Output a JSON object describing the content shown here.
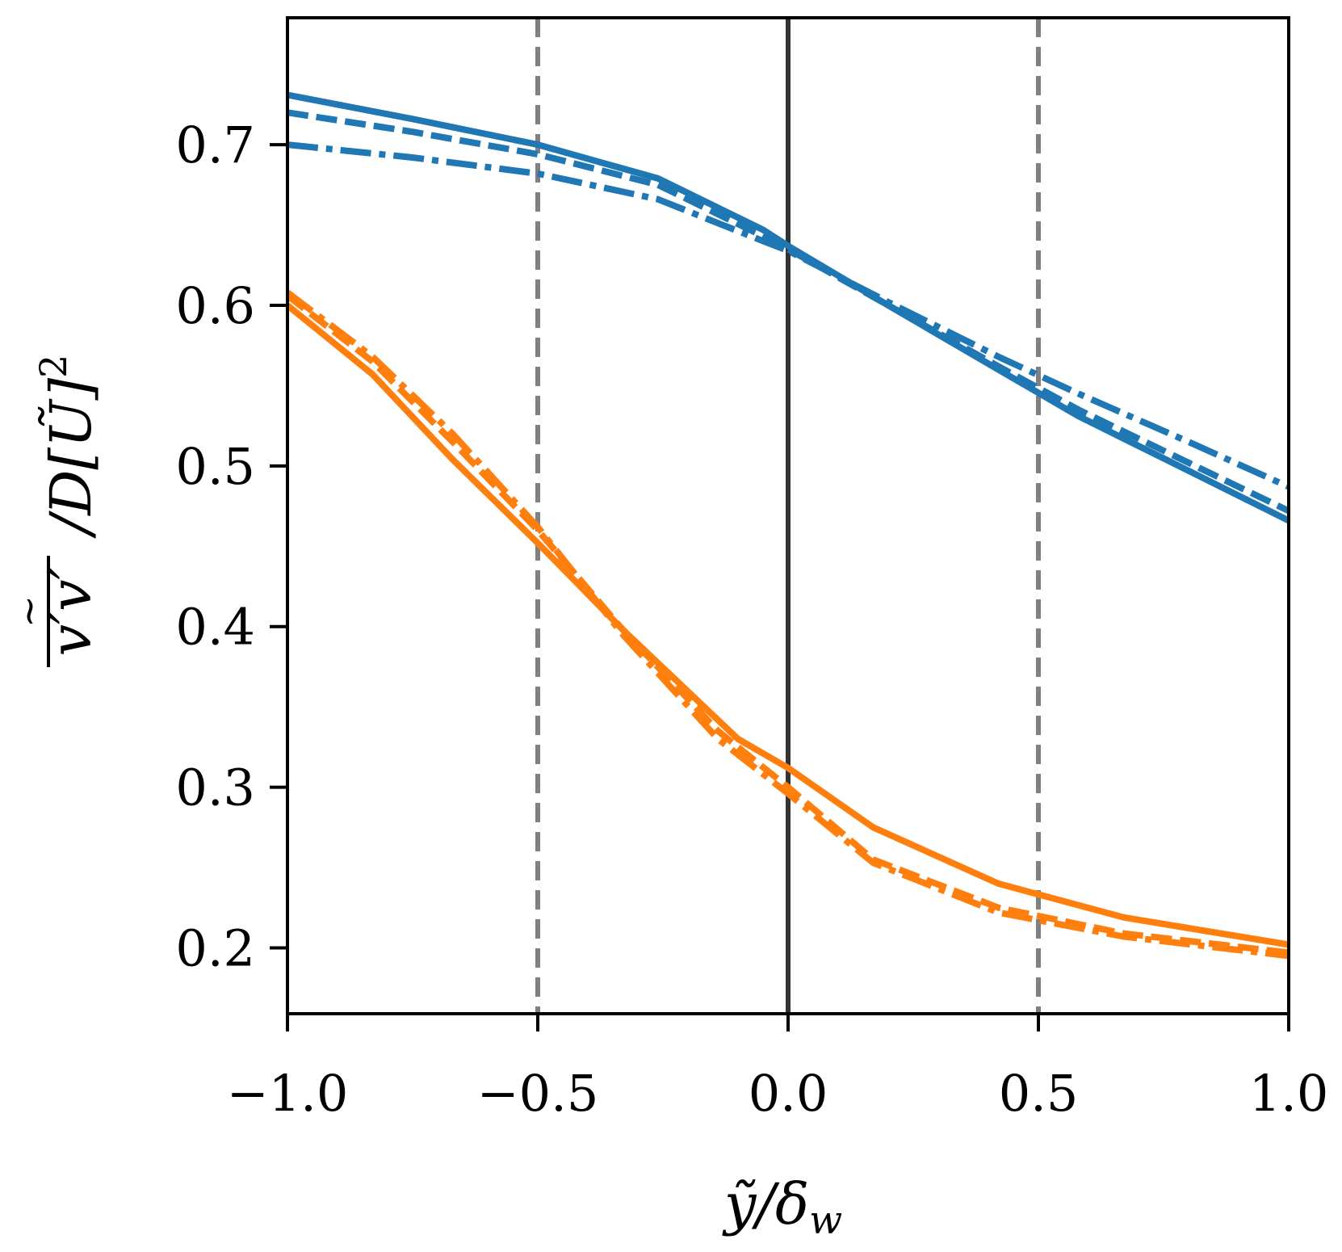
{
  "chart_data": {
    "type": "line",
    "xlabel": "ỹ/δ_w",
    "ylabel": "v′v′~ / D[Ũ]²",
    "xlim": [
      -1.0,
      1.0
    ],
    "ylim": [
      0.159,
      0.779
    ],
    "xticks": [
      -1.0,
      -0.5,
      0.0,
      0.5,
      1.0
    ],
    "xtick_labels": [
      "−1.0",
      "−0.5",
      "0.0",
      "0.5",
      "1.0"
    ],
    "yticks": [
      0.2,
      0.3,
      0.4,
      0.5,
      0.6,
      0.7
    ],
    "ytick_labels": [
      "0.2",
      "0.3",
      "0.4",
      "0.5",
      "0.6",
      "0.7"
    ],
    "grid": false,
    "legend": "none",
    "reference_lines": [
      {
        "axis": "x",
        "value": -0.5,
        "style": "dashed",
        "color": "#808080"
      },
      {
        "axis": "x",
        "value": 0.0,
        "style": "solid",
        "color": "#333333"
      },
      {
        "axis": "x",
        "value": 0.5,
        "style": "dashed",
        "color": "#808080"
      }
    ],
    "series": [
      {
        "color": "#1f77b4",
        "style": "solid",
        "x": [
          -1.0,
          -0.75,
          -0.5,
          -0.26,
          -0.05,
          0.0,
          0.2,
          0.42,
          0.58,
          0.8,
          1.0
        ],
        "y": [
          0.731,
          0.716,
          0.7,
          0.679,
          0.647,
          0.637,
          0.6,
          0.56,
          0.531,
          0.497,
          0.466
        ]
      },
      {
        "color": "#1f77b4",
        "style": "dashed",
        "x": [
          -1.0,
          -0.75,
          -0.5,
          -0.26,
          -0.05,
          0.0,
          0.2,
          0.42,
          0.58,
          0.8,
          1.0
        ],
        "y": [
          0.72,
          0.708,
          0.694,
          0.675,
          0.643,
          0.635,
          0.6,
          0.562,
          0.535,
          0.502,
          0.472
        ]
      },
      {
        "color": "#1f77b4",
        "style": "dashdot",
        "x": [
          -1.0,
          -0.75,
          -0.5,
          -0.26,
          -0.05,
          0.0,
          0.2,
          0.42,
          0.58,
          0.8,
          1.0
        ],
        "y": [
          0.7,
          0.692,
          0.682,
          0.666,
          0.64,
          0.634,
          0.602,
          0.568,
          0.545,
          0.515,
          0.487
        ]
      },
      {
        "color": "#ff7f0e",
        "style": "solid",
        "x": [
          -1.0,
          -0.83,
          -0.67,
          -0.5,
          -0.33,
          -0.1,
          0.0,
          0.17,
          0.42,
          0.67,
          1.0
        ],
        "y": [
          0.6,
          0.557,
          0.504,
          0.452,
          0.398,
          0.33,
          0.312,
          0.275,
          0.24,
          0.219,
          0.202
        ]
      },
      {
        "color": "#ff7f0e",
        "style": "dashed",
        "x": [
          -1.0,
          -0.83,
          -0.67,
          -0.5,
          -0.33,
          -0.14,
          0.0,
          0.17,
          0.42,
          0.67,
          1.0
        ],
        "y": [
          0.606,
          0.565,
          0.515,
          0.46,
          0.398,
          0.335,
          0.3,
          0.255,
          0.225,
          0.209,
          0.197
        ]
      },
      {
        "color": "#ff7f0e",
        "style": "dashdot",
        "x": [
          -1.0,
          -0.83,
          -0.67,
          -0.5,
          -0.33,
          -0.14,
          0.0,
          0.17,
          0.42,
          0.67,
          1.0
        ],
        "y": [
          0.608,
          0.568,
          0.52,
          0.462,
          0.395,
          0.33,
          0.296,
          0.253,
          0.222,
          0.207,
          0.195
        ]
      }
    ]
  }
}
